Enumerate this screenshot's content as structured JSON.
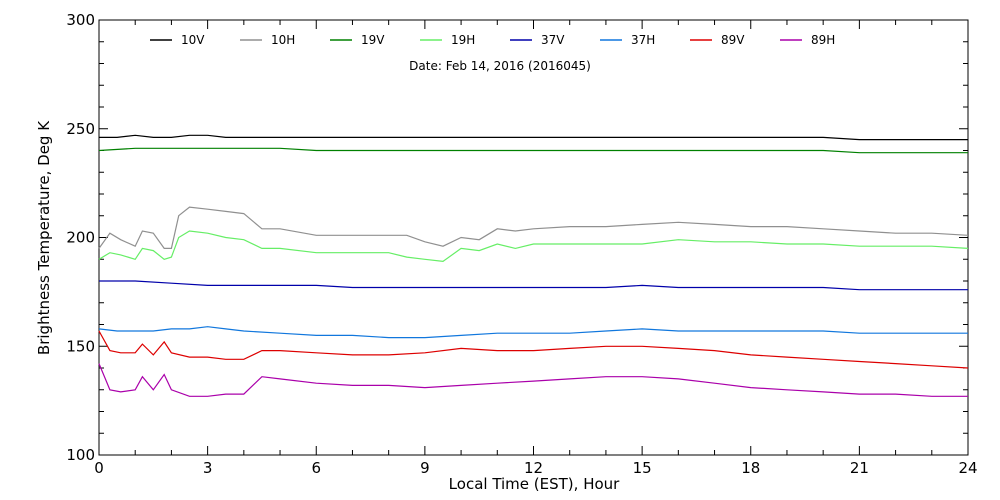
{
  "chart_data": {
    "type": "line",
    "annotation": "Date: Feb 14, 2016 (2016045)",
    "xlabel": "Local Time (EST), Hour",
    "ylabel": "Brightness Temperature, Deg K",
    "xlim": [
      0,
      24
    ],
    "ylim": [
      100,
      300
    ],
    "x_ticks": [
      0,
      3,
      6,
      9,
      12,
      15,
      18,
      21,
      24
    ],
    "y_ticks": [
      100,
      150,
      200,
      250,
      300
    ],
    "grid": false,
    "legend_position": "top",
    "series": [
      {
        "name": "10V",
        "color": "#000000",
        "x": [
          0,
          0.5,
          1,
          1.5,
          2,
          2.5,
          3,
          3.5,
          4,
          5,
          6,
          7,
          8,
          9,
          10,
          11,
          12,
          13,
          14,
          15,
          16,
          17,
          18,
          19,
          20,
          21,
          22,
          23,
          24
        ],
        "y": [
          246,
          246,
          247,
          246,
          246,
          247,
          247,
          246,
          246,
          246,
          246,
          246,
          246,
          246,
          246,
          246,
          246,
          246,
          246,
          246,
          246,
          246,
          246,
          246,
          246,
          245,
          245,
          245,
          245
        ]
      },
      {
        "name": "10H",
        "color": "#909090",
        "x": [
          0,
          0.3,
          0.6,
          1,
          1.2,
          1.5,
          1.8,
          2,
          2.2,
          2.5,
          3,
          3.5,
          4,
          4.5,
          5,
          6,
          7,
          8,
          8.5,
          9,
          9.5,
          10,
          10.5,
          11,
          11.5,
          12,
          13,
          14,
          15,
          16,
          17,
          18,
          19,
          20,
          21,
          22,
          23,
          24
        ],
        "y": [
          195,
          202,
          199,
          196,
          203,
          202,
          195,
          195,
          210,
          214,
          213,
          212,
          211,
          204,
          204,
          201,
          201,
          201,
          201,
          198,
          196,
          200,
          199,
          204,
          203,
          204,
          205,
          205,
          206,
          207,
          206,
          205,
          205,
          204,
          203,
          202,
          202,
          201
        ]
      },
      {
        "name": "19V",
        "color": "#008000",
        "x": [
          0,
          1,
          2,
          3,
          4,
          5,
          6,
          7,
          8,
          9,
          10,
          11,
          12,
          13,
          14,
          15,
          16,
          17,
          18,
          19,
          20,
          21,
          22,
          23,
          24
        ],
        "y": [
          240,
          241,
          241,
          241,
          241,
          241,
          240,
          240,
          240,
          240,
          240,
          240,
          240,
          240,
          240,
          240,
          240,
          240,
          240,
          240,
          240,
          239,
          239,
          239,
          239
        ]
      },
      {
        "name": "19H",
        "color": "#66ee66",
        "x": [
          0,
          0.3,
          0.6,
          1,
          1.2,
          1.5,
          1.8,
          2,
          2.2,
          2.5,
          3,
          3.5,
          4,
          4.5,
          5,
          6,
          7,
          8,
          8.5,
          9,
          9.5,
          10,
          10.5,
          11,
          11.5,
          12,
          13,
          14,
          15,
          16,
          17,
          18,
          19,
          20,
          21,
          22,
          23,
          24
        ],
        "y": [
          190,
          193,
          192,
          190,
          195,
          194,
          190,
          191,
          200,
          203,
          202,
          200,
          199,
          195,
          195,
          193,
          193,
          193,
          191,
          190,
          189,
          195,
          194,
          197,
          195,
          197,
          197,
          197,
          197,
          199,
          198,
          198,
          197,
          197,
          196,
          196,
          196,
          195
        ]
      },
      {
        "name": "37V",
        "color": "#0000aa",
        "x": [
          0,
          1,
          2,
          3,
          4,
          5,
          6,
          7,
          8,
          9,
          10,
          11,
          12,
          13,
          14,
          15,
          16,
          17,
          18,
          19,
          20,
          21,
          22,
          23,
          24
        ],
        "y": [
          180,
          180,
          179,
          178,
          178,
          178,
          178,
          177,
          177,
          177,
          177,
          177,
          177,
          177,
          177,
          178,
          177,
          177,
          177,
          177,
          177,
          176,
          176,
          176,
          176
        ]
      },
      {
        "name": "37H",
        "color": "#1177dd",
        "x": [
          0,
          0.5,
          1,
          1.5,
          2,
          2.5,
          3,
          3.5,
          4,
          5,
          6,
          7,
          8,
          9,
          10,
          11,
          12,
          13,
          14,
          15,
          16,
          17,
          18,
          19,
          20,
          21,
          22,
          23,
          24
        ],
        "y": [
          158,
          157,
          157,
          157,
          158,
          158,
          159,
          158,
          157,
          156,
          155,
          155,
          154,
          154,
          155,
          156,
          156,
          156,
          157,
          158,
          157,
          157,
          157,
          157,
          157,
          156,
          156,
          156,
          156
        ]
      },
      {
        "name": "89V",
        "color": "#dd0000",
        "x": [
          0,
          0.3,
          0.6,
          1,
          1.2,
          1.5,
          1.8,
          2,
          2.5,
          3,
          3.5,
          4,
          4.5,
          5,
          6,
          7,
          8,
          9,
          10,
          11,
          12,
          13,
          14,
          15,
          16,
          17,
          18,
          19,
          20,
          21,
          22,
          23,
          24
        ],
        "y": [
          157,
          148,
          147,
          147,
          151,
          146,
          152,
          147,
          145,
          145,
          144,
          144,
          148,
          148,
          147,
          146,
          146,
          147,
          149,
          148,
          148,
          149,
          150,
          150,
          149,
          148,
          146,
          145,
          144,
          143,
          142,
          141,
          140
        ]
      },
      {
        "name": "89H",
        "color": "#aa00aa",
        "x": [
          0,
          0.3,
          0.6,
          1,
          1.2,
          1.5,
          1.8,
          2,
          2.5,
          3,
          3.5,
          4,
          4.5,
          5,
          6,
          7,
          8,
          9,
          10,
          11,
          12,
          13,
          14,
          15,
          16,
          17,
          18,
          19,
          20,
          21,
          22,
          23,
          24
        ],
        "y": [
          142,
          130,
          129,
          130,
          136,
          130,
          137,
          130,
          127,
          127,
          128,
          128,
          136,
          135,
          133,
          132,
          132,
          131,
          132,
          133,
          134,
          135,
          136,
          136,
          135,
          133,
          131,
          130,
          129,
          128,
          128,
          127,
          127
        ]
      }
    ]
  }
}
